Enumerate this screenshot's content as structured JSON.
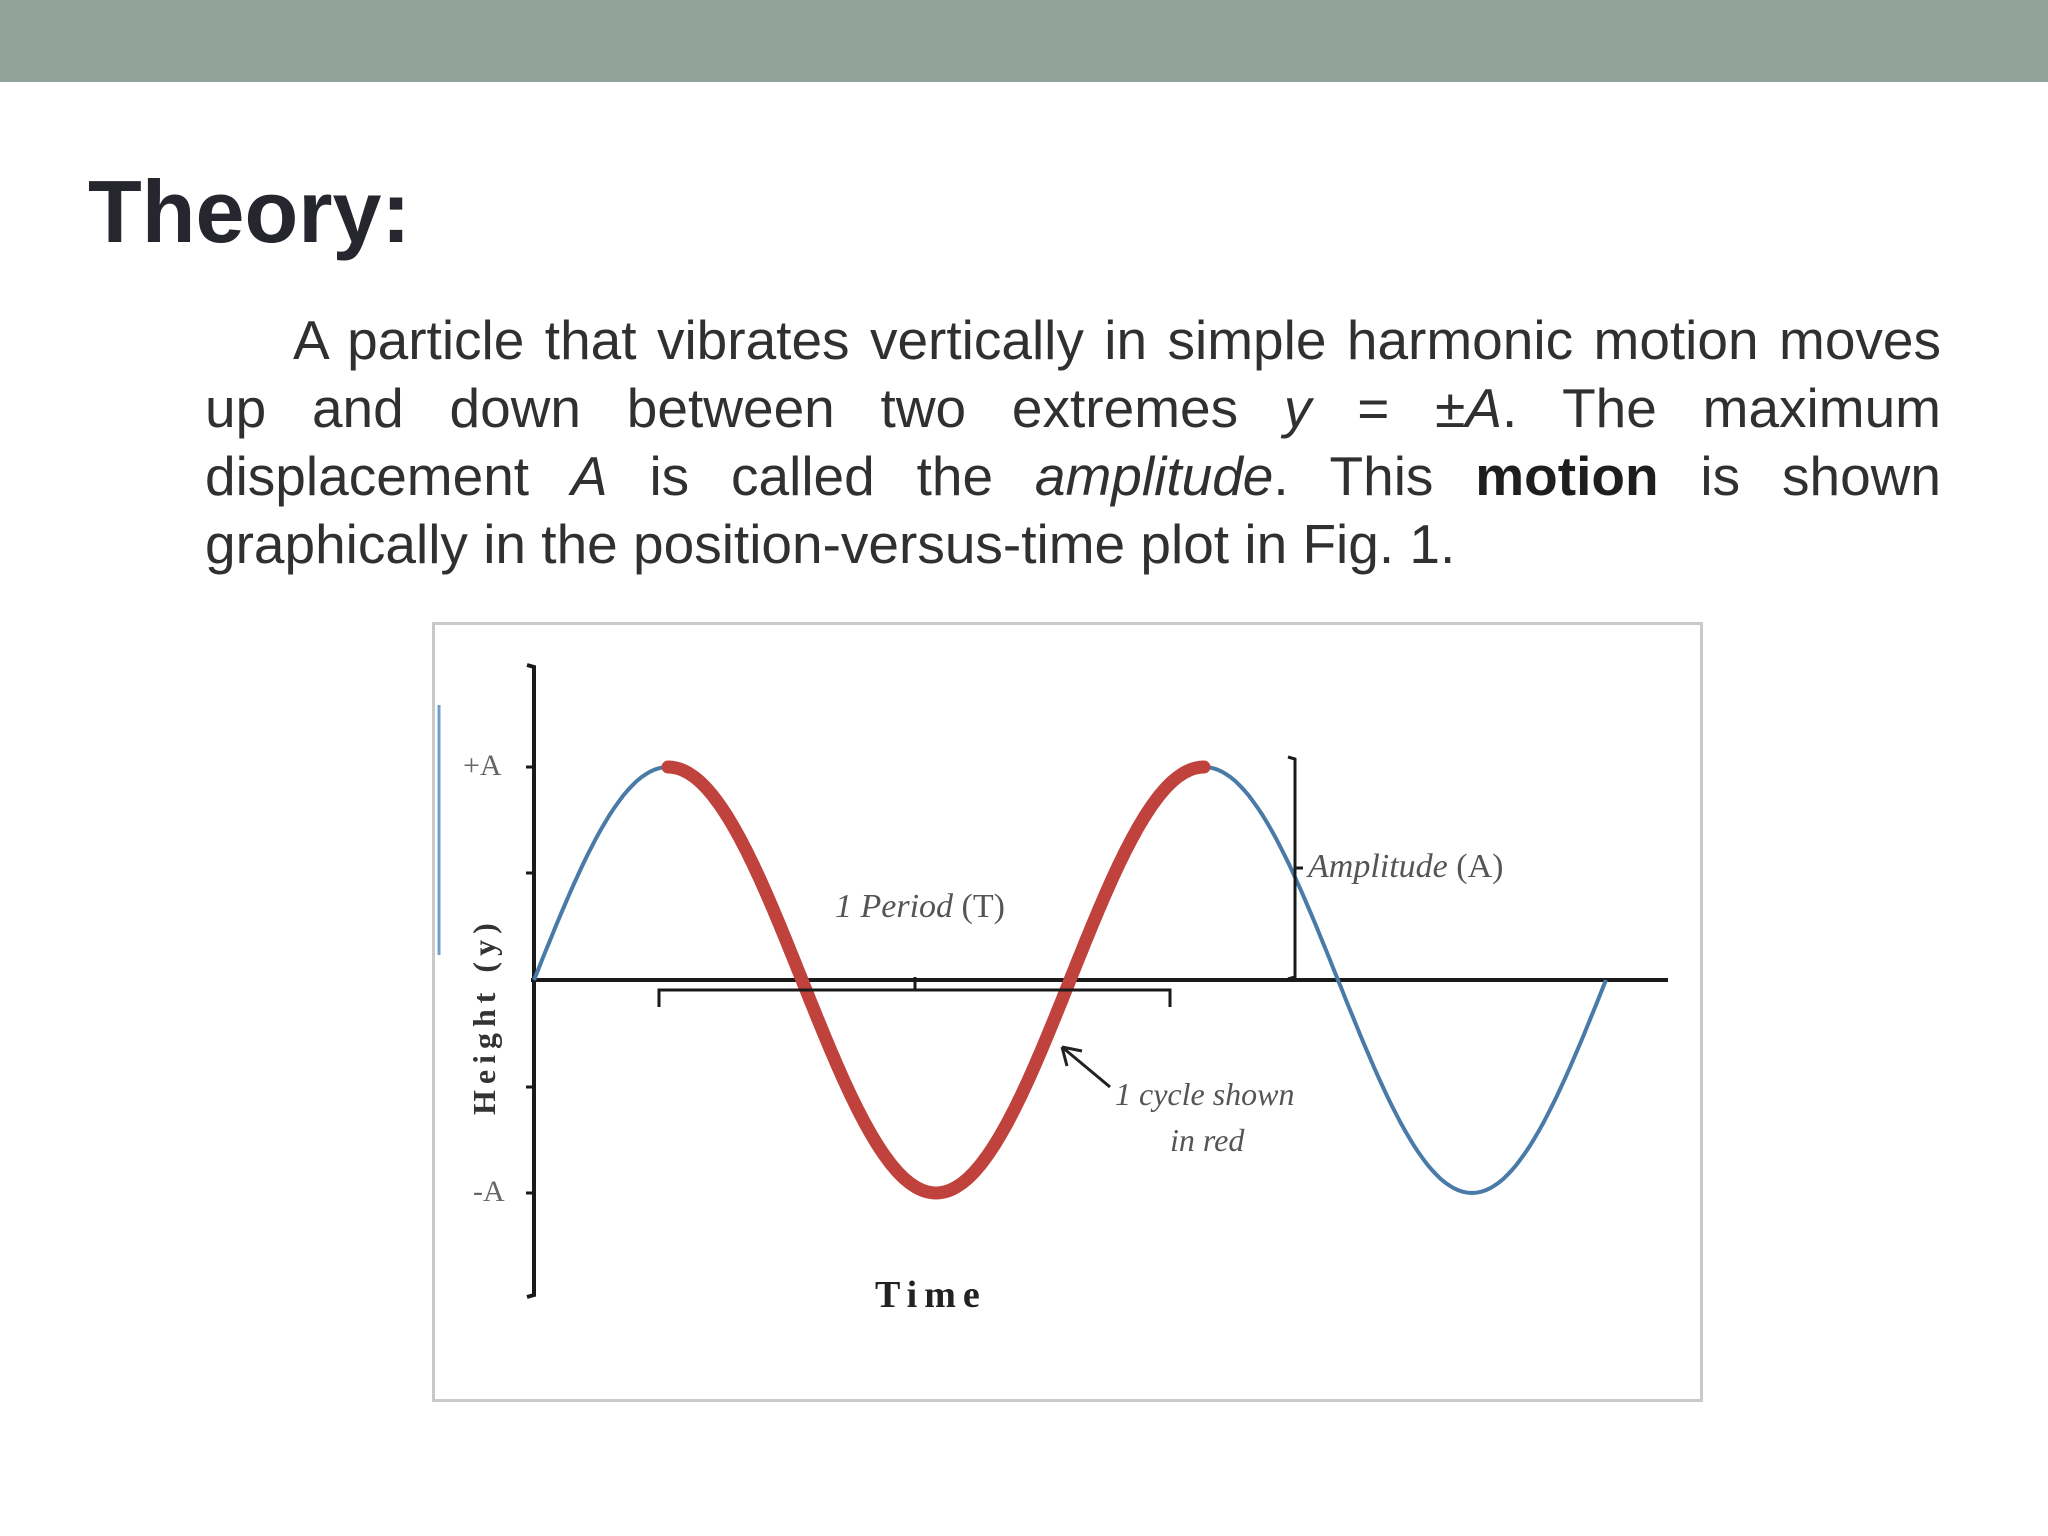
{
  "slide": {
    "title": "Theory:",
    "paragraph": {
      "p1": "A particle that vibrates vertically in simple harmonic motion moves up and down between two extremes ",
      "var_y": "y",
      "p2": " = ±",
      "var_A": "A",
      "p3": ". The maximum displacement ",
      "var_A2": "A",
      "p4": " is called the ",
      "term_amplitude": "amplitude",
      "p5": ". This ",
      "bold_motion": "motion",
      "p6": " is shown graphically in the position-versus-time plot in Fig. 1."
    }
  },
  "figure": {
    "y_axis_label": "Height (y)",
    "x_axis_label": "Time",
    "tick_plus_A": "+A",
    "tick_minus_A": "-A",
    "period_label_italic": "1 Period",
    "period_label_symbol": " (T)",
    "amplitude_label_italic": "Amplitude",
    "amplitude_label_symbol": " (A)",
    "cycle_note_line1": "1 cycle shown",
    "cycle_note_line2": "in red",
    "colors": {
      "blue_curve": "#4a7aa8",
      "red_cycle": "#c0423c",
      "axis": "#1a1a1a",
      "label": "#555555"
    }
  }
}
